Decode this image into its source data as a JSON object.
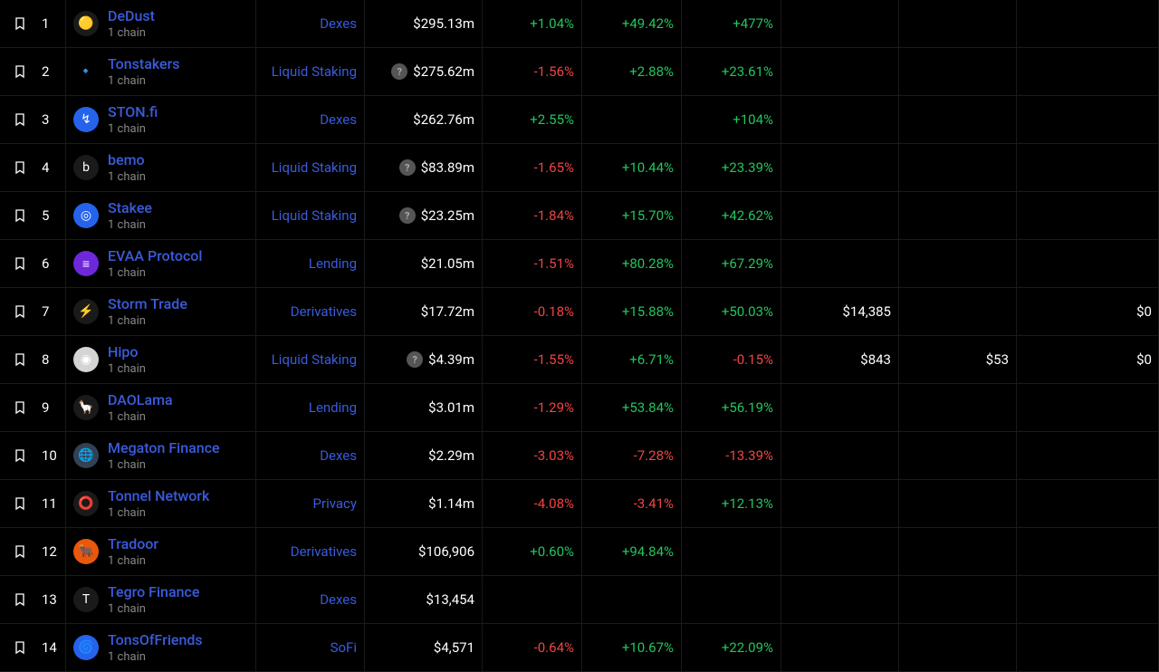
{
  "colors": {
    "bg": "#000000",
    "border": "#1a1a1a",
    "text": "#ffffff",
    "link": "#3b5bdb",
    "muted": "#888888",
    "pos": "#22c55e",
    "neg": "#ef4444"
  },
  "sub_label": "1 chain",
  "rows": [
    {
      "rank": "1",
      "name": "DeDust",
      "icon_bg": "#1a1a1a",
      "icon_glyph": "🟡",
      "category": "Dexes",
      "tvl": "$295.13m",
      "info": false,
      "d1": "+1.04%",
      "d7": "+49.42%",
      "d30": "+477%",
      "fees": "",
      "rev": "",
      "vol": ""
    },
    {
      "rank": "2",
      "name": "Tonstakers",
      "icon_bg": "#000000",
      "icon_glyph": "🔹",
      "category": "Liquid Staking",
      "tvl": "$275.62m",
      "info": true,
      "d1": "-1.56%",
      "d7": "+2.88%",
      "d30": "+23.61%",
      "fees": "",
      "rev": "",
      "vol": ""
    },
    {
      "rank": "3",
      "name": "STON.fi",
      "icon_bg": "#2563eb",
      "icon_glyph": "↯",
      "category": "Dexes",
      "tvl": "$262.76m",
      "info": false,
      "d1": "+2.55%",
      "d7": "",
      "d30": "+104%",
      "fees": "",
      "rev": "",
      "vol": ""
    },
    {
      "rank": "4",
      "name": "bemo",
      "icon_bg": "#1a1a1a",
      "icon_glyph": "b",
      "category": "Liquid Staking",
      "tvl": "$83.89m",
      "info": true,
      "d1": "-1.65%",
      "d7": "+10.44%",
      "d30": "+23.39%",
      "fees": "",
      "rev": "",
      "vol": ""
    },
    {
      "rank": "5",
      "name": "Stakee",
      "icon_bg": "#2563eb",
      "icon_glyph": "◎",
      "category": "Liquid Staking",
      "tvl": "$23.25m",
      "info": true,
      "d1": "-1.84%",
      "d7": "+15.70%",
      "d30": "+42.62%",
      "fees": "",
      "rev": "",
      "vol": ""
    },
    {
      "rank": "6",
      "name": "EVAA Protocol",
      "icon_bg": "#6d28d9",
      "icon_glyph": "≡",
      "category": "Lending",
      "tvl": "$21.05m",
      "info": false,
      "d1": "-1.51%",
      "d7": "+80.28%",
      "d30": "+67.29%",
      "fees": "",
      "rev": "",
      "vol": ""
    },
    {
      "rank": "7",
      "name": "Storm Trade",
      "icon_bg": "#1a1a1a",
      "icon_glyph": "⚡",
      "category": "Derivatives",
      "tvl": "$17.72m",
      "info": false,
      "d1": "-0.18%",
      "d7": "+15.88%",
      "d30": "+50.03%",
      "fees": "$14,385",
      "rev": "",
      "vol": "$0"
    },
    {
      "rank": "8",
      "name": "Hipo",
      "icon_bg": "#d4d4d4",
      "icon_glyph": "◉",
      "category": "Liquid Staking",
      "tvl": "$4.39m",
      "info": true,
      "d1": "-1.55%",
      "d7": "+6.71%",
      "d30": "-0.15%",
      "fees": "$843",
      "rev": "$53",
      "vol": "$0"
    },
    {
      "rank": "9",
      "name": "DAOLama",
      "icon_bg": "#1a1a1a",
      "icon_glyph": "🦙",
      "category": "Lending",
      "tvl": "$3.01m",
      "info": false,
      "d1": "-1.29%",
      "d7": "+53.84%",
      "d30": "+56.19%",
      "fees": "",
      "rev": "",
      "vol": ""
    },
    {
      "rank": "10",
      "name": "Megaton Finance",
      "icon_bg": "#334155",
      "icon_glyph": "🌐",
      "category": "Dexes",
      "tvl": "$2.29m",
      "info": false,
      "d1": "-3.03%",
      "d7": "-7.28%",
      "d30": "-13.39%",
      "fees": "",
      "rev": "",
      "vol": ""
    },
    {
      "rank": "11",
      "name": "Tonnel Network",
      "icon_bg": "#1a1a1a",
      "icon_glyph": "⭕",
      "category": "Privacy",
      "tvl": "$1.14m",
      "info": false,
      "d1": "-4.08%",
      "d7": "-3.41%",
      "d30": "+12.13%",
      "fees": "",
      "rev": "",
      "vol": ""
    },
    {
      "rank": "12",
      "name": "Tradoor",
      "icon_bg": "#ea580c",
      "icon_glyph": "🐂",
      "category": "Derivatives",
      "tvl": "$106,906",
      "info": false,
      "d1": "+0.60%",
      "d7": "+94.84%",
      "d30": "",
      "fees": "",
      "rev": "",
      "vol": ""
    },
    {
      "rank": "13",
      "name": "Tegro Finance",
      "icon_bg": "#1a1a1a",
      "icon_glyph": "T",
      "category": "Dexes",
      "tvl": "$13,454",
      "info": false,
      "d1": "",
      "d7": "",
      "d30": "",
      "fees": "",
      "rev": "",
      "vol": ""
    },
    {
      "rank": "14",
      "name": "TonsOfFriends",
      "icon_bg": "#2563eb",
      "icon_glyph": "🌀",
      "category": "SoFi",
      "tvl": "$4,571",
      "info": false,
      "d1": "-0.64%",
      "d7": "+10.67%",
      "d30": "+22.09%",
      "fees": "",
      "rev": "",
      "vol": ""
    }
  ]
}
